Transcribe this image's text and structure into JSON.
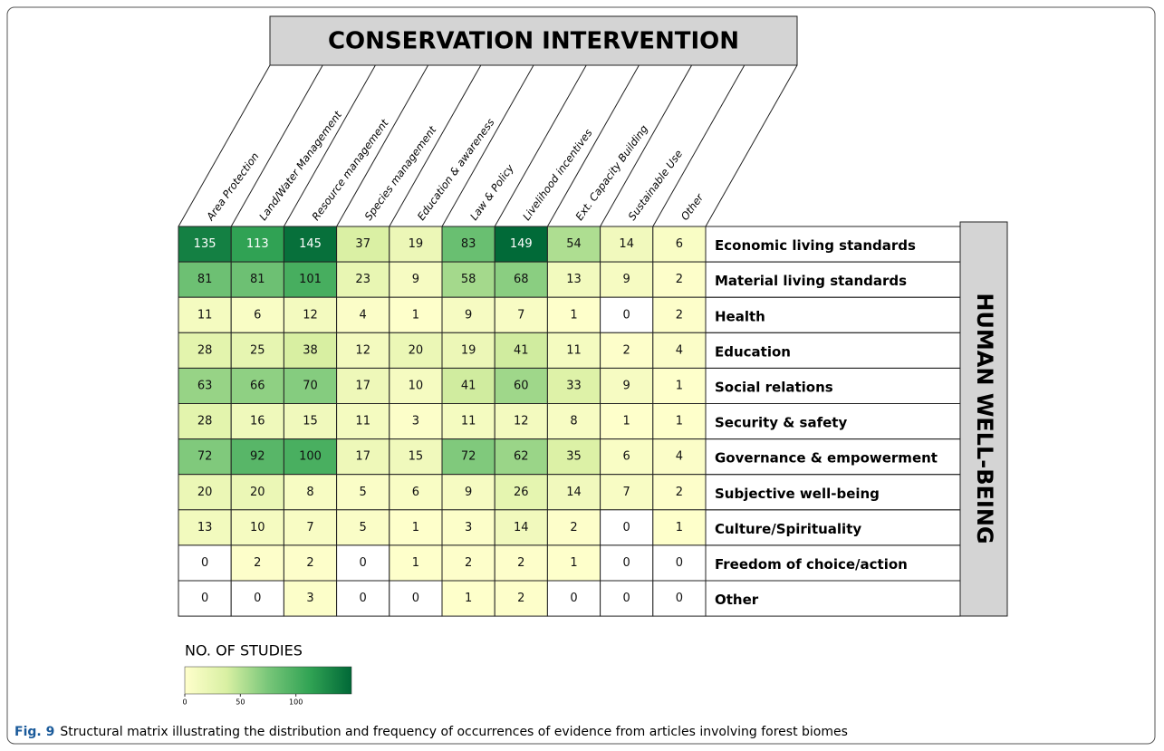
{
  "chart_data": {
    "type": "heatmap",
    "title": "CONSERVATION INTERVENTION",
    "y_title": "HUMAN WELL-BEING",
    "x_categories": [
      "Area Protection",
      "Land/Water Management",
      "Resource management",
      "Species management",
      "Education & awareness",
      "Law & Policy",
      "Livelihood incentives",
      "Ext. Capacity Building",
      "Sustainable Use",
      "Other"
    ],
    "y_categories": [
      "Economic living standards",
      "Material living standards",
      "Health",
      "Education",
      "Social relations",
      "Security & safety",
      "Governance & empowerment",
      "Subjective well-being",
      "Culture/Spirituality",
      "Freedom of choice/action",
      "Other"
    ],
    "values": [
      [
        135,
        113,
        145,
        37,
        19,
        83,
        149,
        54,
        14,
        6
      ],
      [
        81,
        81,
        101,
        23,
        9,
        58,
        68,
        13,
        9,
        2
      ],
      [
        11,
        6,
        12,
        4,
        1,
        9,
        7,
        1,
        0,
        2
      ],
      [
        28,
        25,
        38,
        12,
        20,
        19,
        41,
        11,
        2,
        4
      ],
      [
        63,
        66,
        70,
        17,
        10,
        41,
        60,
        33,
        9,
        1
      ],
      [
        28,
        16,
        15,
        11,
        3,
        11,
        12,
        8,
        1,
        1
      ],
      [
        72,
        92,
        100,
        17,
        15,
        72,
        62,
        35,
        6,
        4
      ],
      [
        20,
        20,
        8,
        5,
        6,
        9,
        26,
        14,
        7,
        2
      ],
      [
        13,
        10,
        7,
        5,
        1,
        3,
        14,
        2,
        0,
        1
      ],
      [
        0,
        2,
        2,
        0,
        1,
        2,
        2,
        1,
        0,
        0
      ],
      [
        0,
        0,
        3,
        0,
        0,
        1,
        2,
        0,
        0,
        0
      ]
    ],
    "colorscale": [
      "#ffffcc",
      "#d9f0a3",
      "#78c679",
      "#31a354",
      "#006837"
    ],
    "zero_color": "#ffffff",
    "colorbar_title": "NO. OF STUDIES",
    "zlim": [
      0,
      150
    ],
    "zticks": [
      0,
      50,
      100
    ]
  },
  "caption_label": "Fig. 9",
  "caption": "Structural matrix illustrating the distribution and frequency of occurrences of evidence from articles involving forest biomes"
}
